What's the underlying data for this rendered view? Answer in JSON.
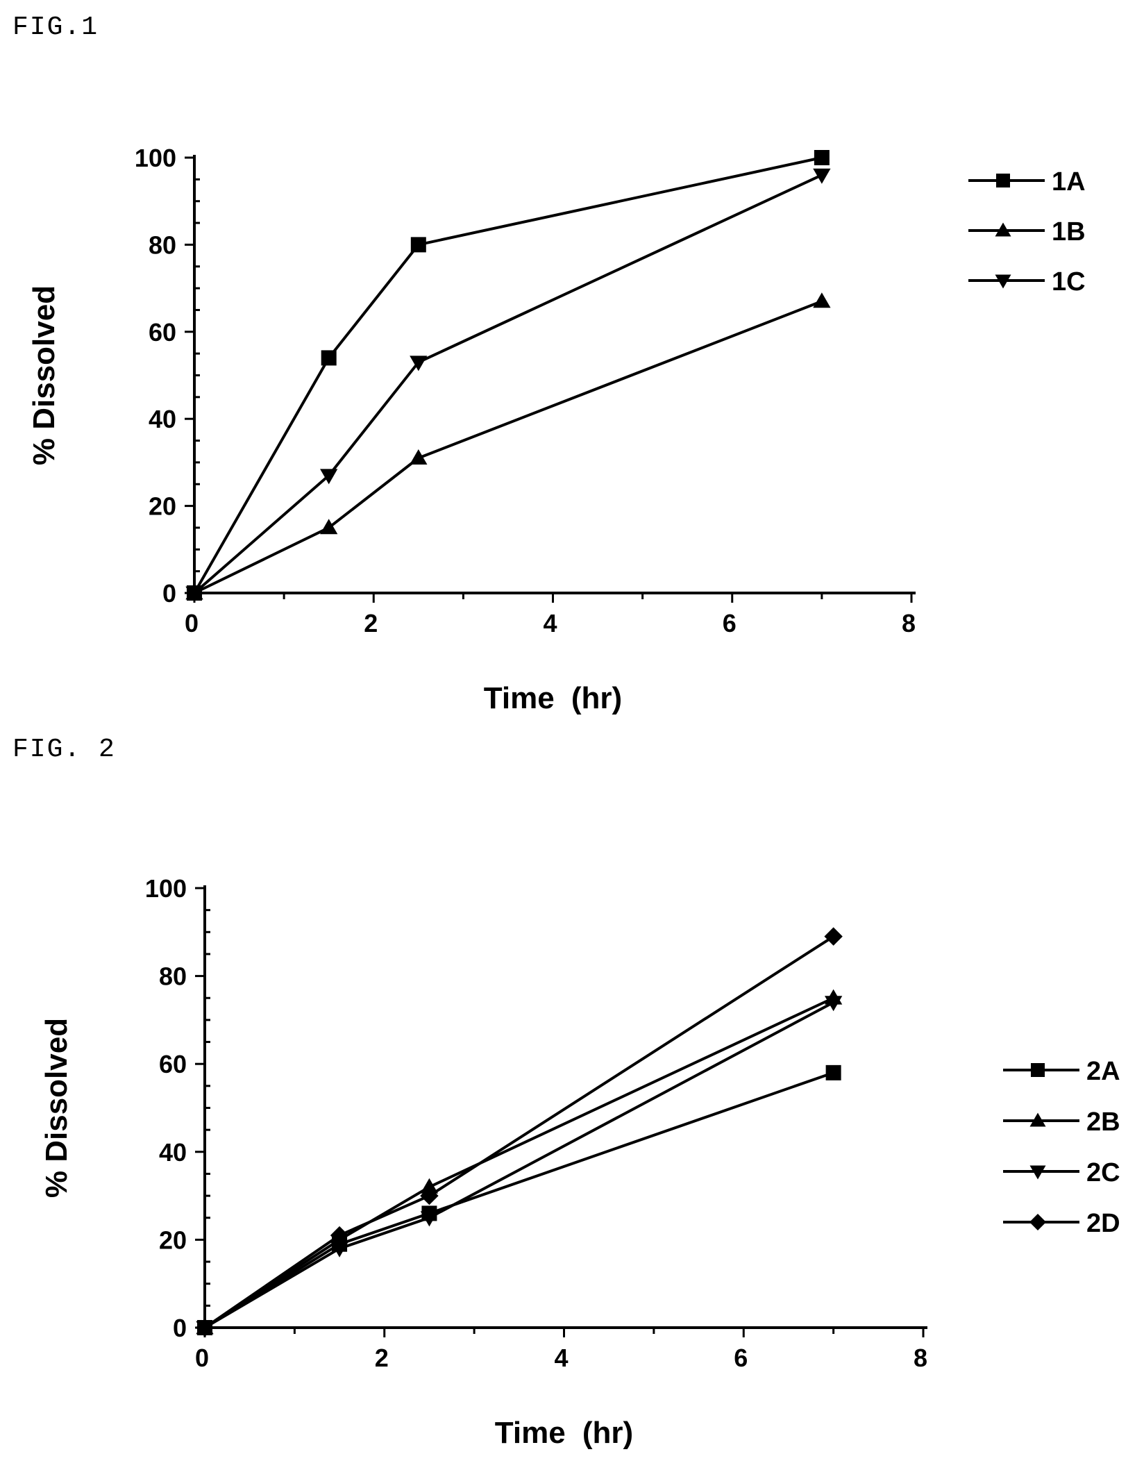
{
  "figures": {
    "fig1_label": "FIG.1",
    "fig2_label": "FIG. 2"
  },
  "chart_data": [
    {
      "type": "line",
      "title": "",
      "xlabel": "Time (hr)",
      "ylabel": "% Dissolved",
      "xlim": [
        0,
        8
      ],
      "ylim": [
        0,
        100
      ],
      "xticks": [
        0,
        2,
        4,
        6,
        8
      ],
      "yticks": [
        0,
        20,
        40,
        60,
        80,
        100
      ],
      "grid": false,
      "legend_position": "top-right",
      "series": [
        {
          "name": "1A",
          "marker": "square",
          "x": [
            0,
            1.5,
            2.5,
            7
          ],
          "y": [
            0,
            54,
            80,
            100
          ]
        },
        {
          "name": "1B",
          "marker": "triangle-up",
          "x": [
            0,
            1.5,
            2.5,
            7
          ],
          "y": [
            0,
            15,
            31,
            67
          ]
        },
        {
          "name": "1C",
          "marker": "triangle-down",
          "x": [
            0,
            1.5,
            2.5,
            7
          ],
          "y": [
            0,
            27,
            53,
            96
          ]
        }
      ]
    },
    {
      "type": "line",
      "title": "",
      "xlabel": "Time (hr)",
      "ylabel": "% Dissolved",
      "xlim": [
        0,
        8
      ],
      "ylim": [
        0,
        100
      ],
      "xticks": [
        0,
        2,
        4,
        6,
        8
      ],
      "yticks": [
        0,
        20,
        40,
        60,
        80,
        100
      ],
      "grid": false,
      "legend_position": "right",
      "series": [
        {
          "name": "2A",
          "marker": "square",
          "x": [
            0,
            1.5,
            2.5,
            7
          ],
          "y": [
            0,
            19,
            26,
            58
          ]
        },
        {
          "name": "2B",
          "marker": "triangle-up",
          "x": [
            0,
            1.5,
            2.5,
            7
          ],
          "y": [
            0,
            20,
            32,
            75
          ]
        },
        {
          "name": "2C",
          "marker": "triangle-down",
          "x": [
            0,
            1.5,
            2.5,
            7
          ],
          "y": [
            0,
            18,
            25,
            74
          ]
        },
        {
          "name": "2D",
          "marker": "diamond",
          "x": [
            0,
            1.5,
            2.5,
            7
          ],
          "y": [
            0,
            21,
            30,
            89
          ]
        }
      ]
    }
  ]
}
